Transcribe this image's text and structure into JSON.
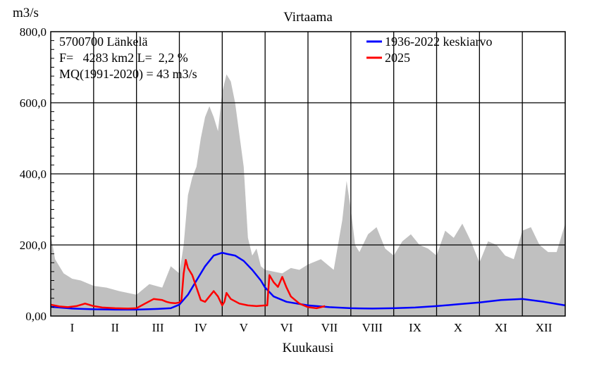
{
  "chart_data": {
    "type": "line",
    "title": "Virtaama",
    "ylabel": "m3/s",
    "xlabel": "Kuukausi",
    "ylim": [
      0,
      800
    ],
    "yticks": [
      0,
      200,
      400,
      600,
      800
    ],
    "ytick_labels": [
      "0,00",
      "200,0",
      "400,0",
      "600,0",
      "800,0"
    ],
    "categories": [
      "I",
      "II",
      "III",
      "IV",
      "V",
      "VI",
      "VII",
      "VIII",
      "IX",
      "X",
      "XI",
      "XII"
    ],
    "info_lines": [
      "5700700 Länkelä",
      "F=   4283 km2 L=  2,2 %",
      "MQ(1991-2020) = 43 m3/s"
    ],
    "grid": true,
    "legend_position": "top-right",
    "envelope": {
      "name": "",
      "color": "#c0c0c0",
      "x": [
        0,
        0.1,
        0.3,
        0.5,
        0.7,
        1.0,
        1.3,
        1.6,
        2.0,
        2.3,
        2.6,
        2.8,
        3.0,
        3.1,
        3.2,
        3.3,
        3.4,
        3.5,
        3.6,
        3.7,
        3.8,
        3.9,
        4.0,
        4.1,
        4.2,
        4.3,
        4.5,
        4.6,
        4.7,
        4.8,
        4.9,
        5.0,
        5.2,
        5.4,
        5.6,
        5.8,
        6.0,
        6.3,
        6.6,
        6.8,
        6.9,
        7.0,
        7.1,
        7.2,
        7.4,
        7.6,
        7.8,
        8.0,
        8.2,
        8.4,
        8.6,
        8.8,
        9.0,
        9.2,
        9.4,
        9.6,
        9.8,
        10.0,
        10.2,
        10.4,
        10.6,
        10.8,
        11.0,
        11.2,
        11.4,
        11.6,
        11.8,
        12.0
      ],
      "values": [
        230,
        160,
        120,
        105,
        100,
        85,
        80,
        70,
        60,
        90,
        80,
        140,
        120,
        200,
        340,
        390,
        420,
        500,
        560,
        590,
        560,
        520,
        630,
        680,
        660,
        600,
        420,
        220,
        170,
        190,
        140,
        130,
        125,
        120,
        135,
        130,
        145,
        160,
        130,
        270,
        380,
        300,
        200,
        180,
        230,
        250,
        190,
        170,
        210,
        230,
        200,
        190,
        170,
        240,
        220,
        260,
        210,
        150,
        210,
        200,
        170,
        160,
        240,
        250,
        200,
        180,
        180,
        260
      ]
    },
    "series": [
      {
        "name": "1936-2022 keskiarvo",
        "color": "#0000ff",
        "x": [
          0,
          0.5,
          1.0,
          1.5,
          2.0,
          2.5,
          2.8,
          3.0,
          3.2,
          3.4,
          3.6,
          3.8,
          4.0,
          4.1,
          4.3,
          4.5,
          4.7,
          4.9,
          5.0,
          5.2,
          5.5,
          6.0,
          6.5,
          7.0,
          7.5,
          8.0,
          8.5,
          9.0,
          9.5,
          10.0,
          10.5,
          11.0,
          11.5,
          12.0
        ],
        "values": [
          26,
          21,
          19,
          18,
          18,
          20,
          22,
          32,
          60,
          100,
          140,
          170,
          178,
          175,
          170,
          155,
          130,
          100,
          80,
          55,
          40,
          30,
          25,
          22,
          21,
          22,
          24,
          28,
          33,
          38,
          45,
          48,
          40,
          30
        ]
      },
      {
        "name": "2025",
        "color": "#ff0000",
        "x": [
          0,
          0.2,
          0.4,
          0.6,
          0.8,
          1.0,
          1.2,
          1.5,
          1.8,
          2.0,
          2.2,
          2.4,
          2.6,
          2.7,
          2.8,
          2.9,
          3.0,
          3.05,
          3.1,
          3.15,
          3.2,
          3.3,
          3.4,
          3.5,
          3.6,
          3.7,
          3.8,
          3.9,
          4.0,
          4.05,
          4.1,
          4.2,
          4.4,
          4.6,
          4.8,
          5.0,
          5.05,
          5.1,
          5.2,
          5.3,
          5.4,
          5.5,
          5.6,
          5.8,
          6.0,
          6.2,
          6.4
        ],
        "values": [
          32,
          27,
          25,
          28,
          35,
          28,
          24,
          22,
          21,
          22,
          35,
          48,
          45,
          40,
          37,
          36,
          38,
          45,
          120,
          158,
          135,
          115,
          80,
          45,
          40,
          55,
          70,
          55,
          30,
          40,
          65,
          48,
          35,
          30,
          28,
          30,
          30,
          115,
          95,
          82,
          110,
          80,
          55,
          35,
          25,
          22,
          28
        ]
      }
    ]
  }
}
